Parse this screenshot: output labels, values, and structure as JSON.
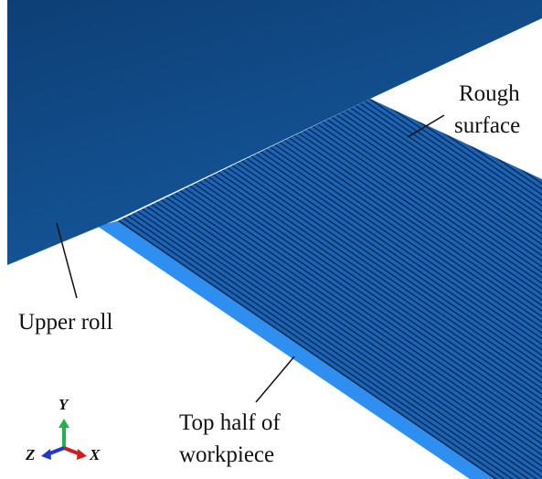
{
  "labels": {
    "rough_surface": [
      "Rough",
      "surface"
    ],
    "upper_roll": "Upper roll",
    "workpiece": [
      "Top half of",
      "workpiece"
    ]
  },
  "axes": {
    "y": "Y",
    "z": "Z",
    "x": "X"
  }
}
